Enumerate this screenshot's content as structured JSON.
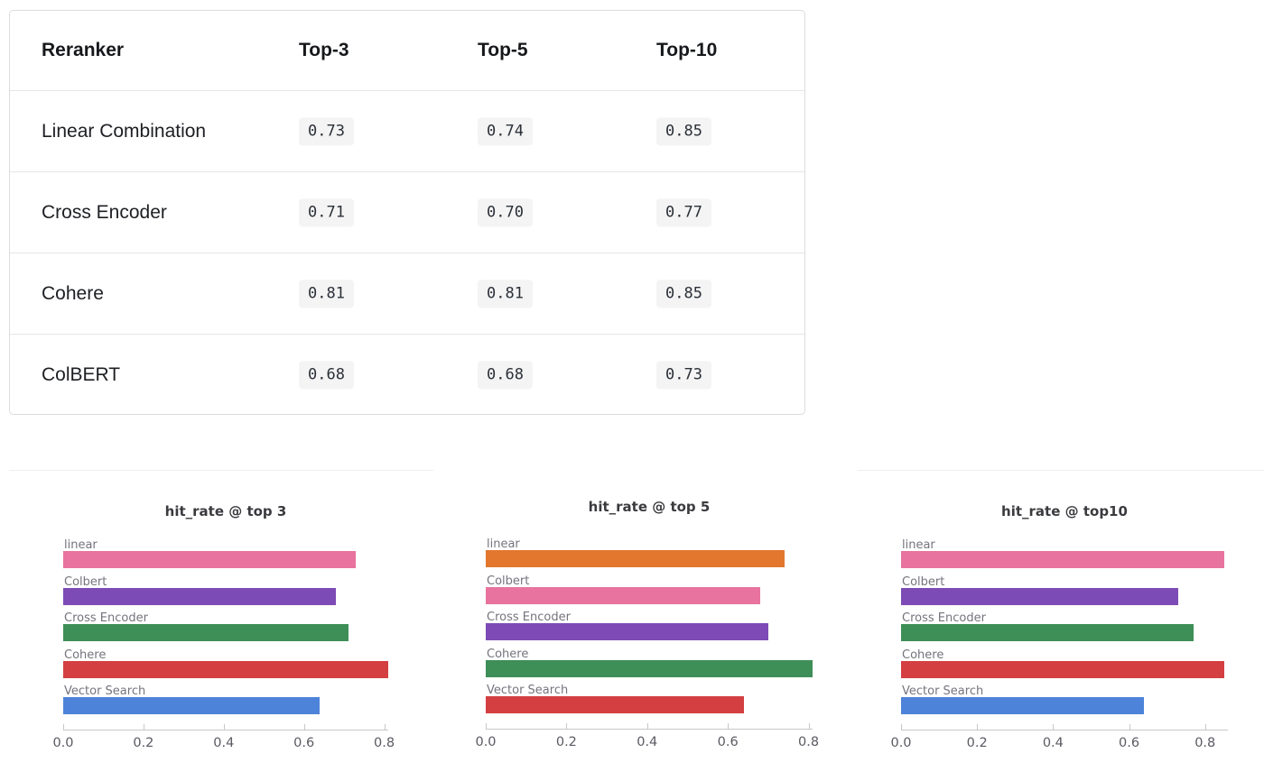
{
  "table": {
    "columns": [
      "Reranker",
      "Top-3",
      "Top-5",
      "Top-10"
    ],
    "rows": [
      {
        "name": "Linear Combination",
        "values": [
          "0.73",
          "0.74",
          "0.85"
        ]
      },
      {
        "name": "Cross Encoder",
        "values": [
          "0.71",
          "0.70",
          "0.77"
        ]
      },
      {
        "name": "Cohere",
        "values": [
          "0.81",
          "0.81",
          "0.85"
        ]
      },
      {
        "name": "ColBERT",
        "values": [
          "0.68",
          "0.68",
          "0.73"
        ]
      }
    ],
    "value_pill_bg": "#f4f4f4"
  },
  "chart_data": [
    {
      "type": "bar",
      "orientation": "horizontal",
      "title": "hit_rate @ top 3",
      "categories": [
        "linear",
        "Colbert",
        "Cross Encoder",
        "Cohere",
        "Vector Search"
      ],
      "values": [
        0.73,
        0.68,
        0.71,
        0.81,
        0.64
      ],
      "colors": [
        "#e8739e",
        "#7d4bb5",
        "#3e8e58",
        "#d43f41",
        "#4d83d9"
      ],
      "xticks": [
        0.0,
        0.2,
        0.4,
        0.6,
        0.8
      ],
      "xlim": [
        0,
        0.81
      ],
      "xlabel": "",
      "ylabel": "",
      "grid": false,
      "legend": "none"
    },
    {
      "type": "bar",
      "orientation": "horizontal",
      "title": "hit_rate @ top 5",
      "categories": [
        "linear",
        "Colbert",
        "Cross Encoder",
        "Cohere",
        "Vector Search"
      ],
      "values": [
        0.74,
        0.68,
        0.7,
        0.81,
        0.64
      ],
      "colors": [
        "#e2772d",
        "#e8739e",
        "#7d4bb5",
        "#3e8e58",
        "#d43f41"
      ],
      "xticks": [
        0.0,
        0.2,
        0.4,
        0.6,
        0.8
      ],
      "xlim": [
        0,
        0.81
      ],
      "xlabel": "",
      "ylabel": "",
      "grid": false,
      "legend": "none"
    },
    {
      "type": "bar",
      "orientation": "horizontal",
      "title": "hit_rate @ top10",
      "categories": [
        "linear",
        "Colbert",
        "Cross Encoder",
        "Cohere",
        "Vector Search"
      ],
      "values": [
        0.85,
        0.73,
        0.77,
        0.85,
        0.64
      ],
      "colors": [
        "#e8739e",
        "#7d4bb5",
        "#3e8e58",
        "#d43f41",
        "#4d83d9"
      ],
      "xticks": [
        0.0,
        0.2,
        0.4,
        0.6,
        0.8
      ],
      "xlim": [
        0,
        0.86
      ],
      "xlabel": "",
      "ylabel": "",
      "grid": false,
      "legend": "none"
    }
  ]
}
